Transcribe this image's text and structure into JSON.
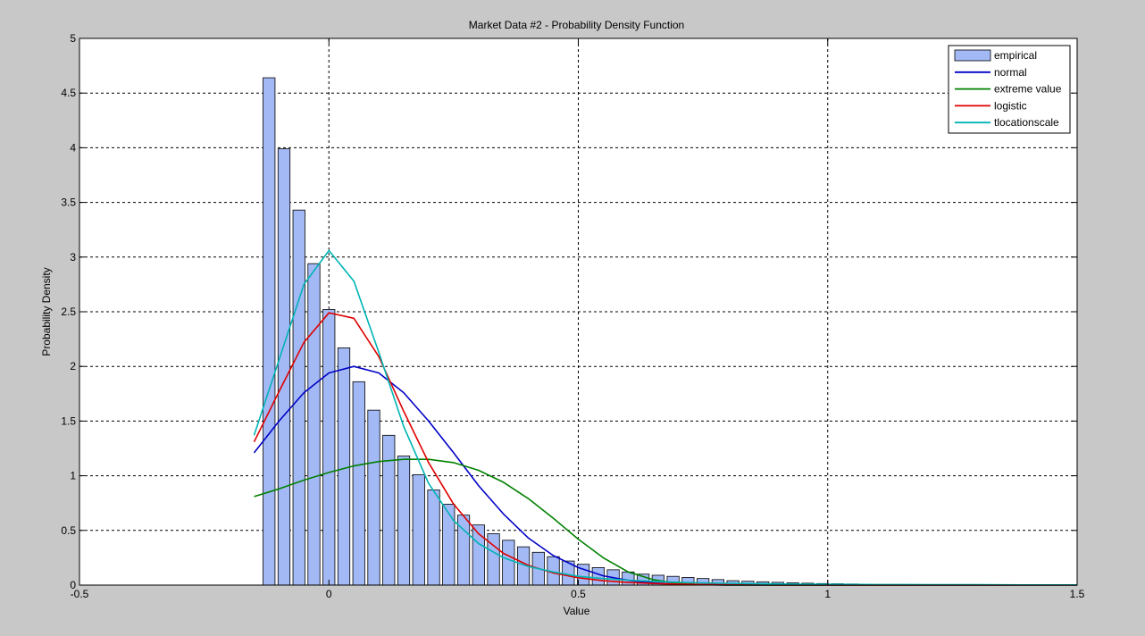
{
  "chart_data": {
    "type": "bar",
    "title": "Market Data #2 - Probability Density Function",
    "xlabel": "Value",
    "ylabel": "Probability Density",
    "xlim": [
      -0.5,
      1.5
    ],
    "ylim": [
      0,
      5
    ],
    "xticks": [
      -0.5,
      0,
      0.5,
      1,
      1.5
    ],
    "yticks": [
      0,
      0.5,
      1,
      1.5,
      2,
      2.5,
      3,
      3.5,
      4,
      4.5,
      5
    ],
    "xtick_labels": [
      "-0.5",
      "0",
      "0.5",
      "1",
      "1.5"
    ],
    "ytick_labels": [
      "0",
      "0.5",
      "1",
      "1.5",
      "2",
      "2.5",
      "3",
      "3.5",
      "4",
      "4.5",
      "5"
    ],
    "grid": true,
    "legend_position": "top-right",
    "histogram": {
      "name": "empirical",
      "color": "#a3b9f5",
      "bin_width": 0.03,
      "bin_centers": [
        -0.12,
        -0.09,
        -0.06,
        -0.03,
        0.0,
        0.03,
        0.06,
        0.09,
        0.12,
        0.15,
        0.18,
        0.21,
        0.24,
        0.27,
        0.3,
        0.33,
        0.36,
        0.39,
        0.42,
        0.45,
        0.48,
        0.51,
        0.54,
        0.57,
        0.6,
        0.63,
        0.66,
        0.69,
        0.72,
        0.75,
        0.78,
        0.81,
        0.84,
        0.87,
        0.9,
        0.93,
        0.96,
        0.99,
        1.02,
        1.05
      ],
      "values": [
        4.64,
        3.99,
        3.43,
        2.94,
        2.52,
        2.17,
        1.86,
        1.6,
        1.37,
        1.18,
        1.01,
        0.87,
        0.74,
        0.64,
        0.55,
        0.47,
        0.41,
        0.35,
        0.3,
        0.26,
        0.22,
        0.19,
        0.16,
        0.14,
        0.12,
        0.1,
        0.09,
        0.08,
        0.07,
        0.06,
        0.05,
        0.04,
        0.035,
        0.03,
        0.025,
        0.02,
        0.017,
        0.014,
        0.012,
        0.01
      ]
    },
    "series": [
      {
        "name": "normal",
        "color": "#0000c8",
        "x": [
          -0.15,
          -0.1,
          -0.05,
          0.0,
          0.05,
          0.1,
          0.15,
          0.2,
          0.25,
          0.3,
          0.35,
          0.4,
          0.45,
          0.5,
          0.55,
          0.6,
          0.65,
          0.7,
          0.75,
          0.8,
          0.85,
          0.9,
          0.95,
          1.0,
          1.1,
          1.2,
          1.3,
          1.4,
          1.5
        ],
        "y": [
          1.21,
          1.5,
          1.76,
          1.94,
          2.0,
          1.94,
          1.76,
          1.5,
          1.21,
          0.91,
          0.65,
          0.43,
          0.27,
          0.16,
          0.085,
          0.043,
          0.02,
          0.008,
          0.003,
          0.001,
          0.0,
          0.0,
          0.0,
          0.0,
          0.0,
          0.0,
          0.0,
          0.0,
          0.0
        ]
      },
      {
        "name": "extreme value",
        "color": "#008000",
        "x": [
          -0.15,
          -0.1,
          -0.05,
          0.0,
          0.05,
          0.1,
          0.15,
          0.2,
          0.25,
          0.3,
          0.35,
          0.4,
          0.45,
          0.5,
          0.55,
          0.6,
          0.65,
          0.7,
          0.75,
          0.8,
          0.85,
          0.9,
          0.95,
          1.0,
          1.1,
          1.2,
          1.3,
          1.4,
          1.5
        ],
        "y": [
          0.81,
          0.88,
          0.96,
          1.03,
          1.09,
          1.13,
          1.15,
          1.15,
          1.12,
          1.05,
          0.94,
          0.79,
          0.61,
          0.42,
          0.25,
          0.12,
          0.05,
          0.015,
          0.004,
          0.001,
          0.0,
          0.0,
          0.0,
          0.0,
          0.0,
          0.0,
          0.0,
          0.0,
          0.0
        ]
      },
      {
        "name": "logistic",
        "color": "#e00000",
        "x": [
          -0.15,
          -0.1,
          -0.05,
          0.0,
          0.05,
          0.1,
          0.15,
          0.2,
          0.25,
          0.3,
          0.35,
          0.4,
          0.45,
          0.5,
          0.55,
          0.6,
          0.65,
          0.7,
          0.75,
          0.8,
          0.85,
          0.9,
          0.95,
          1.0,
          1.1,
          1.2,
          1.3,
          1.4,
          1.5
        ],
        "y": [
          1.31,
          1.77,
          2.22,
          2.49,
          2.44,
          2.09,
          1.59,
          1.12,
          0.74,
          0.47,
          0.29,
          0.18,
          0.11,
          0.067,
          0.04,
          0.024,
          0.015,
          0.009,
          0.005,
          0.003,
          0.002,
          0.001,
          0.0,
          0.0,
          0.0,
          0.0,
          0.0,
          0.0,
          0.0
        ]
      },
      {
        "name": "tlocationscale",
        "color": "#00b4b4",
        "x": [
          -0.15,
          -0.1,
          -0.05,
          0.0,
          0.05,
          0.1,
          0.15,
          0.2,
          0.25,
          0.3,
          0.35,
          0.4,
          0.45,
          0.5,
          0.55,
          0.6,
          0.65,
          0.7,
          0.75,
          0.8,
          0.85,
          0.9,
          0.95,
          1.0,
          1.1,
          1.2,
          1.3,
          1.4,
          1.5
        ],
        "y": [
          1.37,
          2.06,
          2.75,
          3.06,
          2.78,
          2.13,
          1.45,
          0.93,
          0.59,
          0.38,
          0.25,
          0.17,
          0.12,
          0.08,
          0.06,
          0.045,
          0.034,
          0.026,
          0.02,
          0.016,
          0.013,
          0.01,
          0.008,
          0.007,
          0.005,
          0.004,
          0.003,
          0.002,
          0.002
        ]
      }
    ]
  }
}
